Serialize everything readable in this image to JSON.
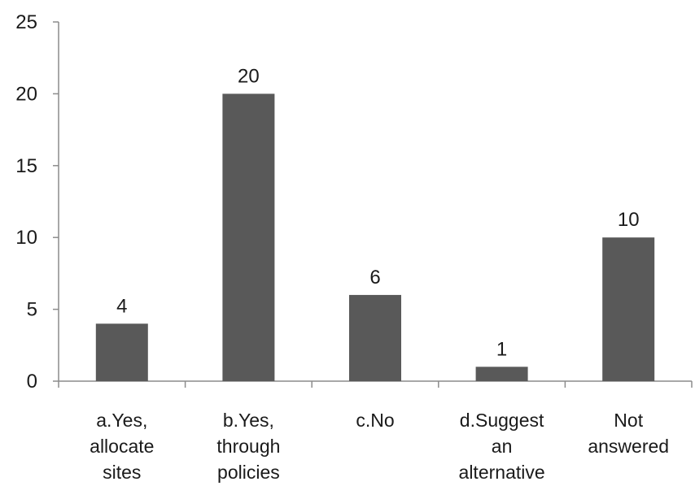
{
  "chart_data": {
    "type": "bar",
    "title": "",
    "xlabel": "",
    "ylabel": "",
    "categories": [
      [
        "a.Yes,",
        "allocate",
        "sites"
      ],
      [
        "b.Yes,",
        "through",
        "policies"
      ],
      [
        "c.No"
      ],
      [
        "d.Suggest",
        "an",
        "alternative"
      ],
      [
        "Not",
        "answered"
      ]
    ],
    "values": [
      4,
      20,
      6,
      1,
      10
    ],
    "data_labels": [
      "4",
      "20",
      "6",
      "1",
      "10"
    ],
    "ylim": [
      0,
      25
    ],
    "yticks": [
      0,
      5,
      10,
      15,
      20,
      25
    ],
    "ytick_labels": [
      "0",
      "5",
      "10",
      "15",
      "20",
      "25"
    ],
    "grid": false,
    "legend": "none",
    "bar_color": "#595959"
  }
}
